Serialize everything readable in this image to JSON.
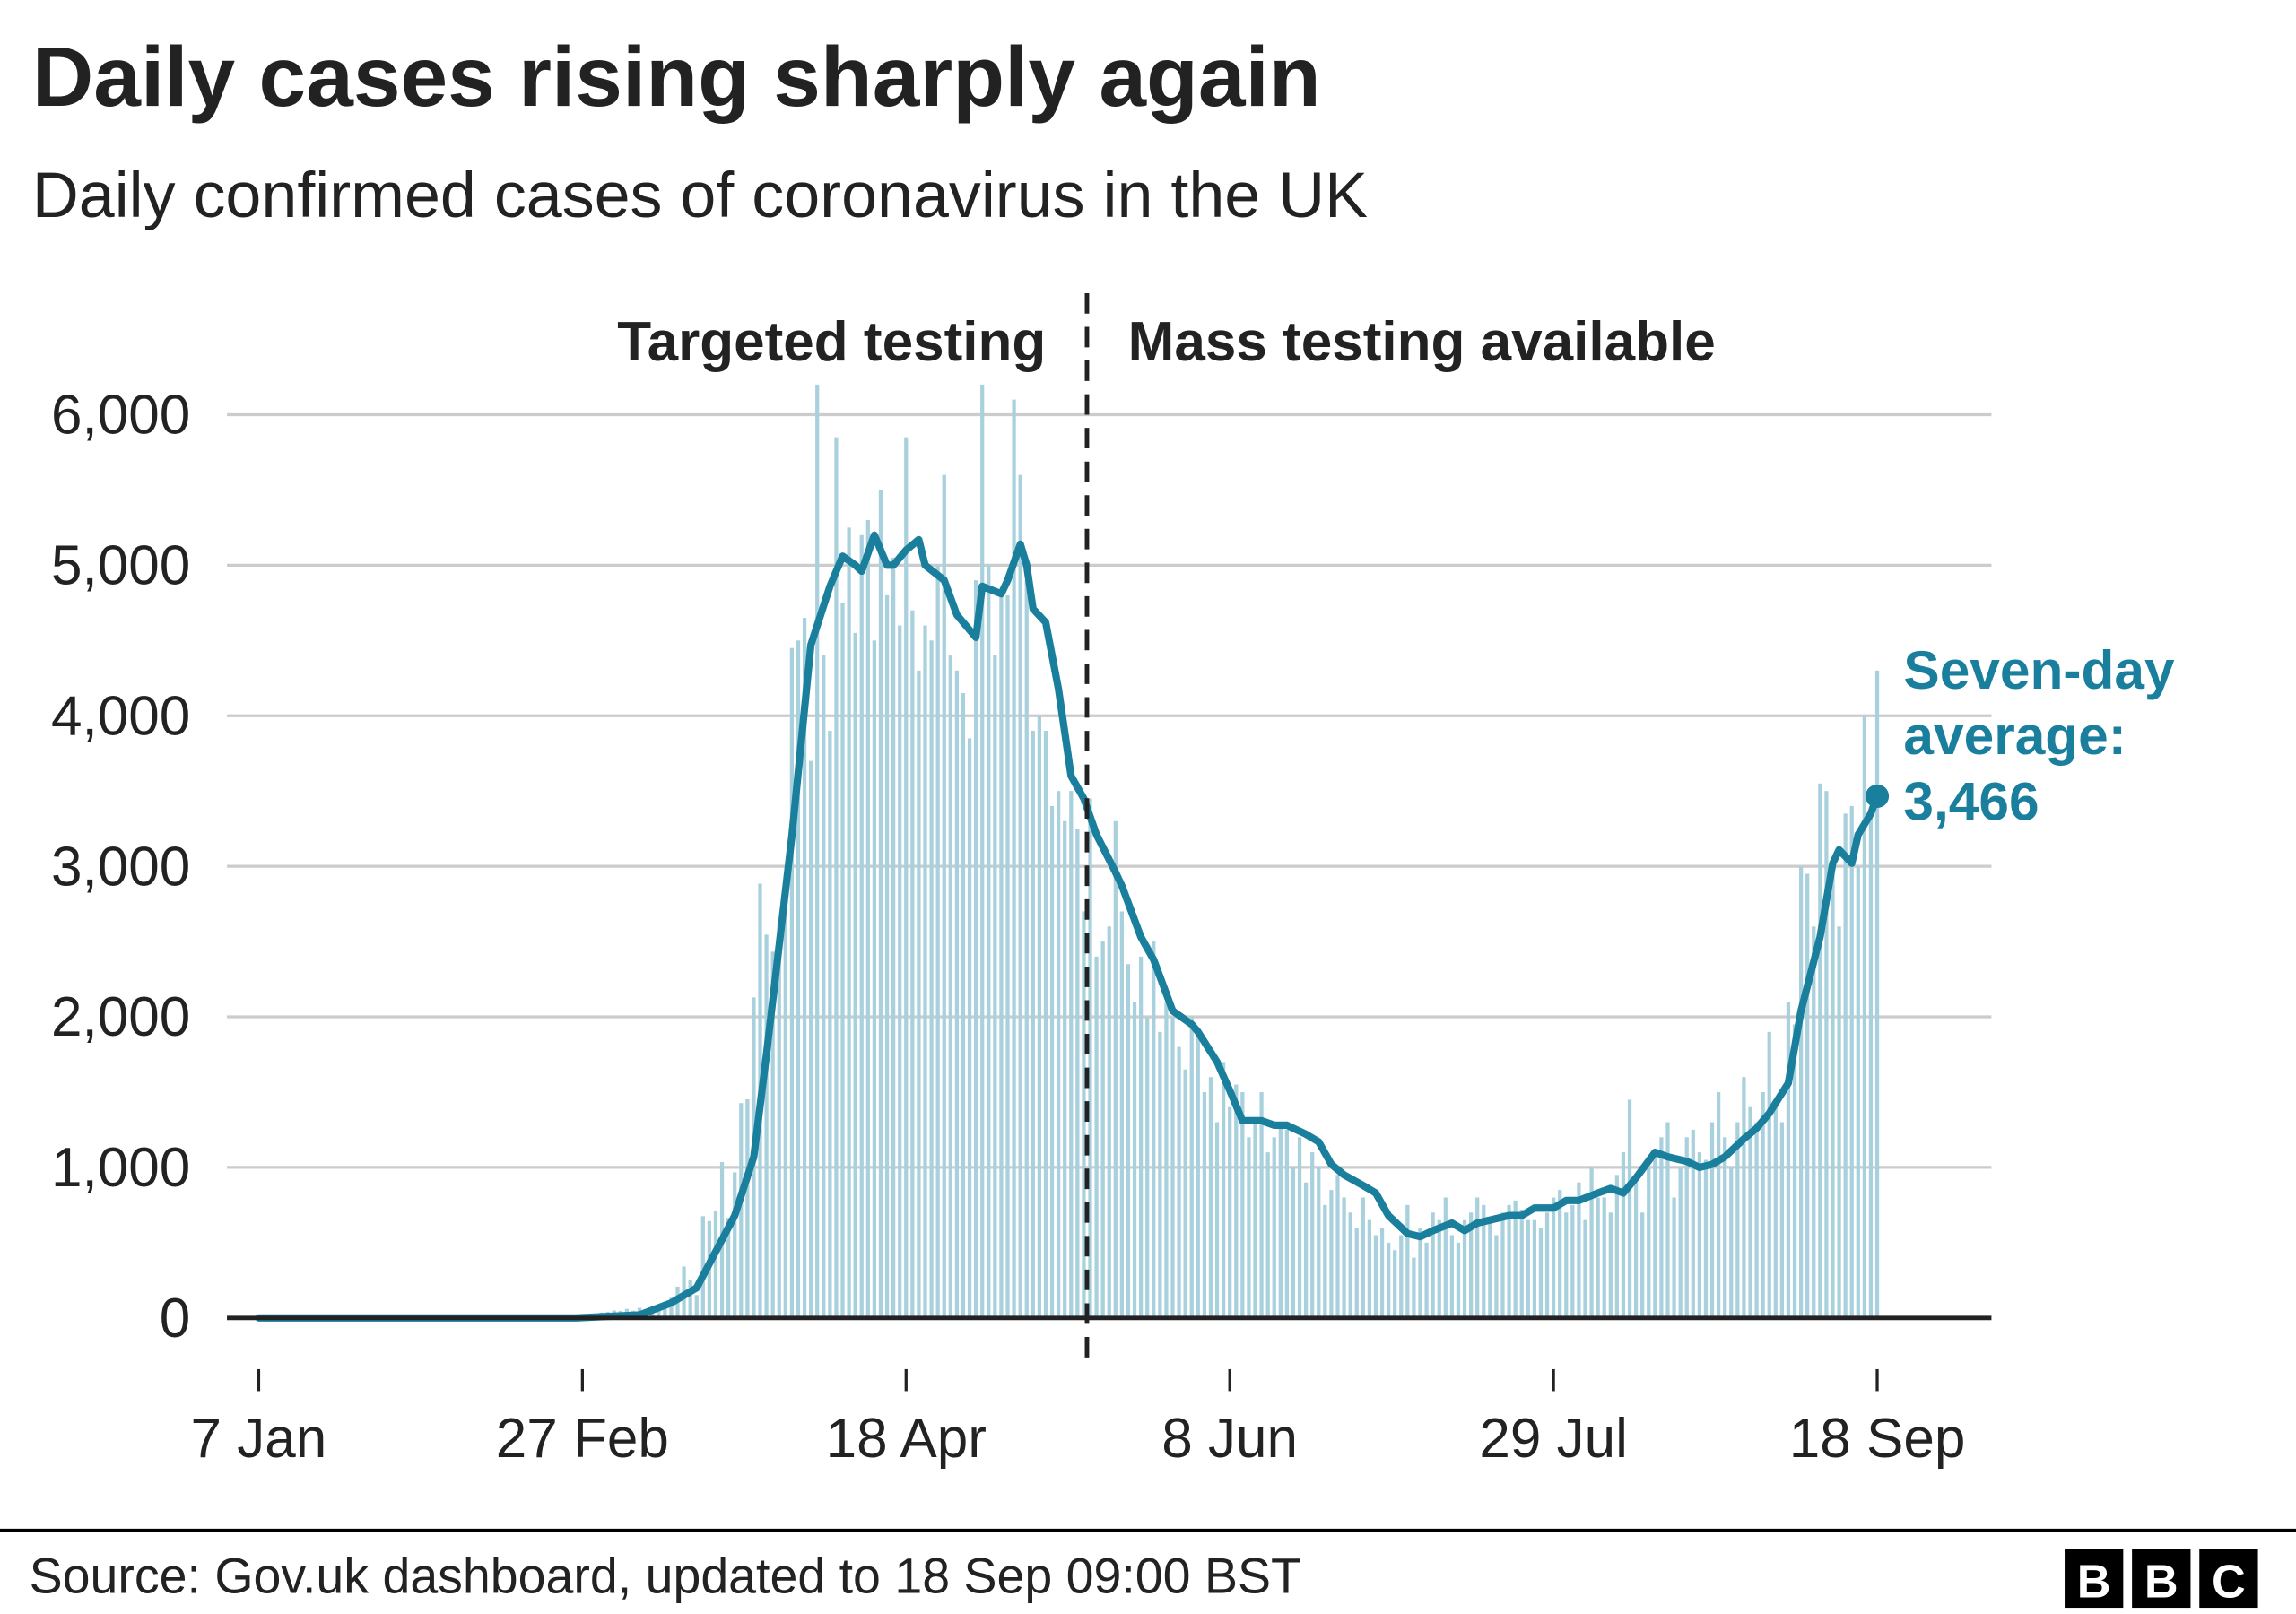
{
  "chart_data": {
    "type": "bar",
    "title": "Daily cases rising sharply again",
    "subtitle": "Daily confirmed cases of coronavirus in the UK",
    "regions": [
      {
        "label": "Targeted testing",
        "side": "left"
      },
      {
        "label": "Mass testing available",
        "side": "right"
      }
    ],
    "divider_x": 130.5,
    "xlim": [
      -5,
      273
    ],
    "xticks": [
      {
        "value": 0,
        "label": "7 Jan"
      },
      {
        "value": 51,
        "label": "27 Feb"
      },
      {
        "value": 102,
        "label": "18 Apr"
      },
      {
        "value": 153,
        "label": "8 Jun"
      },
      {
        "value": 204,
        "label": "29 Jul"
      },
      {
        "value": 255,
        "label": "18 Sep"
      }
    ],
    "ylim": [
      0,
      6000
    ],
    "yticks": [
      {
        "value": 0,
        "label": "0"
      },
      {
        "value": 1000,
        "label": "1,000"
      },
      {
        "value": 2000,
        "label": "2,000"
      },
      {
        "value": 3000,
        "label": "3,000"
      },
      {
        "value": 4000,
        "label": "4,000"
      },
      {
        "value": 5000,
        "label": "5,000"
      },
      {
        "value": 6000,
        "label": "6,000"
      }
    ],
    "grid": true,
    "series": [
      {
        "type": "bar",
        "color": "#a9d0dd",
        "x": [
          53,
          54,
          55,
          56,
          57,
          58,
          59,
          60,
          61,
          62,
          63,
          64,
          65,
          66,
          67,
          68,
          69,
          70,
          71,
          72,
          73,
          74,
          75,
          76,
          77,
          78,
          79,
          80,
          81,
          82,
          83,
          84,
          85,
          86,
          87,
          88,
          89,
          90,
          91,
          92,
          93,
          94,
          95,
          96,
          97,
          98,
          99,
          100,
          101,
          102,
          103,
          104,
          105,
          106,
          107,
          108,
          109,
          110,
          111,
          112,
          113,
          114,
          115,
          116,
          117,
          118,
          119,
          120,
          121,
          122,
          123,
          124,
          125,
          126,
          127,
          128,
          129,
          130,
          131,
          132,
          133,
          134,
          135,
          136,
          137,
          138,
          139,
          140,
          141,
          142,
          143,
          144,
          145,
          146,
          147,
          148,
          149,
          150,
          151,
          152,
          153,
          154,
          155,
          156,
          157,
          158,
          159,
          160,
          161,
          162,
          163,
          164,
          165,
          166,
          167,
          168,
          169,
          170,
          171,
          172,
          173,
          174,
          175,
          176,
          177,
          178,
          179,
          180,
          181,
          182,
          183,
          184,
          185,
          186,
          187,
          188,
          189,
          190,
          191,
          192,
          193,
          194,
          195,
          196,
          197,
          198,
          199,
          200,
          201,
          202,
          203,
          204,
          205,
          206,
          207,
          208,
          209,
          210,
          211,
          212,
          213,
          214,
          215,
          216,
          217,
          218,
          219,
          220,
          221,
          222,
          223,
          224,
          225,
          226,
          227,
          228,
          229,
          230,
          231,
          232,
          233,
          234,
          235,
          236,
          237,
          238,
          239,
          240,
          241,
          242,
          243,
          244,
          245,
          246,
          247,
          248,
          249,
          250,
          251,
          252,
          253,
          254,
          255
        ],
        "values": [
          12,
          36,
          40,
          50,
          47,
          60,
          48,
          67,
          46,
          65,
          50,
          83,
          134,
          208,
          342,
          251,
          152,
          676,
          643,
          714,
          1035,
          665,
          967,
          1427,
          1452,
          2129,
          2885,
          2546,
          2433,
          2619,
          2700,
          4450,
          4500,
          4650,
          3700,
          6200,
          4400,
          3900,
          5850,
          4750,
          5250,
          4550,
          5200,
          5300,
          4500,
          5500,
          4800,
          5050,
          4600,
          5850,
          4700,
          4300,
          4600,
          4500,
          5000,
          5600,
          4400,
          4300,
          4150,
          3850,
          4900,
          6200,
          5000,
          4400,
          4800,
          4800,
          6100,
          5600,
          4900,
          3900,
          4000,
          3900,
          3400,
          3500,
          3300,
          3500,
          3250,
          2700,
          3450,
          2400,
          2500,
          2600,
          3300,
          2700,
          2350,
          2100,
          2400,
          2000,
          2500,
          1900,
          2100,
          2000,
          1800,
          1650,
          2000,
          1900,
          1500,
          1600,
          1300,
          1700,
          1400,
          1550,
          1500,
          1200,
          1300,
          1500,
          1100,
          1200,
          1300,
          1250,
          1000,
          1200,
          900,
          1100,
          1000,
          750,
          850,
          950,
          800,
          700,
          600,
          800,
          650,
          550,
          600,
          500,
          450,
          550,
          750,
          400,
          600,
          500,
          700,
          650,
          800,
          550,
          500,
          650,
          700,
          800,
          750,
          650,
          550,
          700,
          750,
          780,
          720,
          650,
          650,
          600,
          700,
          800,
          850,
          700,
          750,
          900,
          650,
          1000,
          800,
          800,
          700,
          950,
          1100,
          1450,
          900,
          700,
          1000,
          1100,
          1200,
          1300,
          800,
          1000,
          1200,
          1250,
          1100,
          1050,
          1300,
          1500,
          1200,
          1000,
          1300,
          1600,
          1400,
          1300,
          1500,
          1900,
          1450,
          1300,
          2100,
          1950,
          3000,
          2950,
          2600,
          3550,
          3500,
          2950,
          2600,
          3350,
          3400,
          3000,
          4000,
          3400,
          4300
        ]
      },
      {
        "type": "line",
        "color": "#1a7f9c",
        "annotation": [
          "Seven-day",
          "average:"
        ],
        "x": [
          0,
          50,
          60,
          65,
          69,
          72,
          75,
          78,
          80,
          84,
          87,
          90,
          92,
          94,
          95,
          97,
          99,
          100,
          102,
          104,
          105,
          108,
          110,
          113,
          114,
          117,
          118,
          120,
          121,
          122,
          124,
          126,
          128,
          130,
          132,
          135,
          136,
          139,
          141,
          144,
          147,
          148,
          151,
          153,
          155,
          158,
          160,
          162,
          165,
          167,
          169,
          171,
          174,
          176,
          178,
          181,
          183,
          185,
          188,
          190,
          192,
          195,
          197,
          199,
          201,
          204,
          206,
          208,
          211,
          213,
          215,
          217,
          220,
          222,
          225,
          227,
          229,
          231,
          234,
          236,
          238,
          241,
          243,
          246,
          248,
          249,
          251,
          252,
          254,
          255
        ],
        "values": [
          0,
          0,
          20,
          100,
          200,
          440,
          680,
          1070,
          1750,
          3200,
          4470,
          4860,
          5060,
          5000,
          4960,
          5200,
          5000,
          5000,
          5100,
          5170,
          5000,
          4900,
          4670,
          4520,
          4860,
          4810,
          4900,
          5140,
          5000,
          4710,
          4620,
          4180,
          3600,
          3450,
          3210,
          2960,
          2870,
          2530,
          2380,
          2040,
          1950,
          1900,
          1700,
          1510,
          1310,
          1310,
          1280,
          1280,
          1220,
          1170,
          1020,
          950,
          880,
          830,
          680,
          560,
          540,
          580,
          630,
          580,
          630,
          660,
          680,
          680,
          730,
          730,
          780,
          780,
          830,
          860,
          830,
          930,
          1100,
          1070,
          1040,
          1000,
          1020,
          1070,
          1190,
          1260,
          1360,
          1560,
          2040,
          2530,
          3020,
          3110,
          3020,
          3210,
          3350,
          3466
        ],
        "value_labels": [
          null,
          null,
          null,
          null,
          null,
          null,
          null,
          null,
          null,
          null,
          null,
          null,
          null,
          null,
          null,
          null,
          null,
          null,
          null,
          null,
          null,
          null,
          null,
          null,
          null,
          null,
          null,
          null,
          null,
          null,
          null,
          null,
          null,
          null,
          null,
          null,
          null,
          null,
          null,
          null,
          null,
          null,
          null,
          null,
          null,
          null,
          null,
          null,
          null,
          null,
          null,
          null,
          null,
          null,
          null,
          null,
          null,
          null,
          null,
          null,
          null,
          null,
          null,
          null,
          null,
          null,
          null,
          null,
          null,
          null,
          null,
          null,
          null,
          null,
          null,
          null,
          null,
          null,
          null,
          null,
          null,
          null,
          null,
          null,
          null,
          null,
          null,
          null,
          null,
          "3,466"
        ]
      }
    ],
    "source": "Source: Gov.uk dashboard, updated to 18 Sep 09:00 BST",
    "logo": [
      "B",
      "B",
      "C"
    ]
  }
}
